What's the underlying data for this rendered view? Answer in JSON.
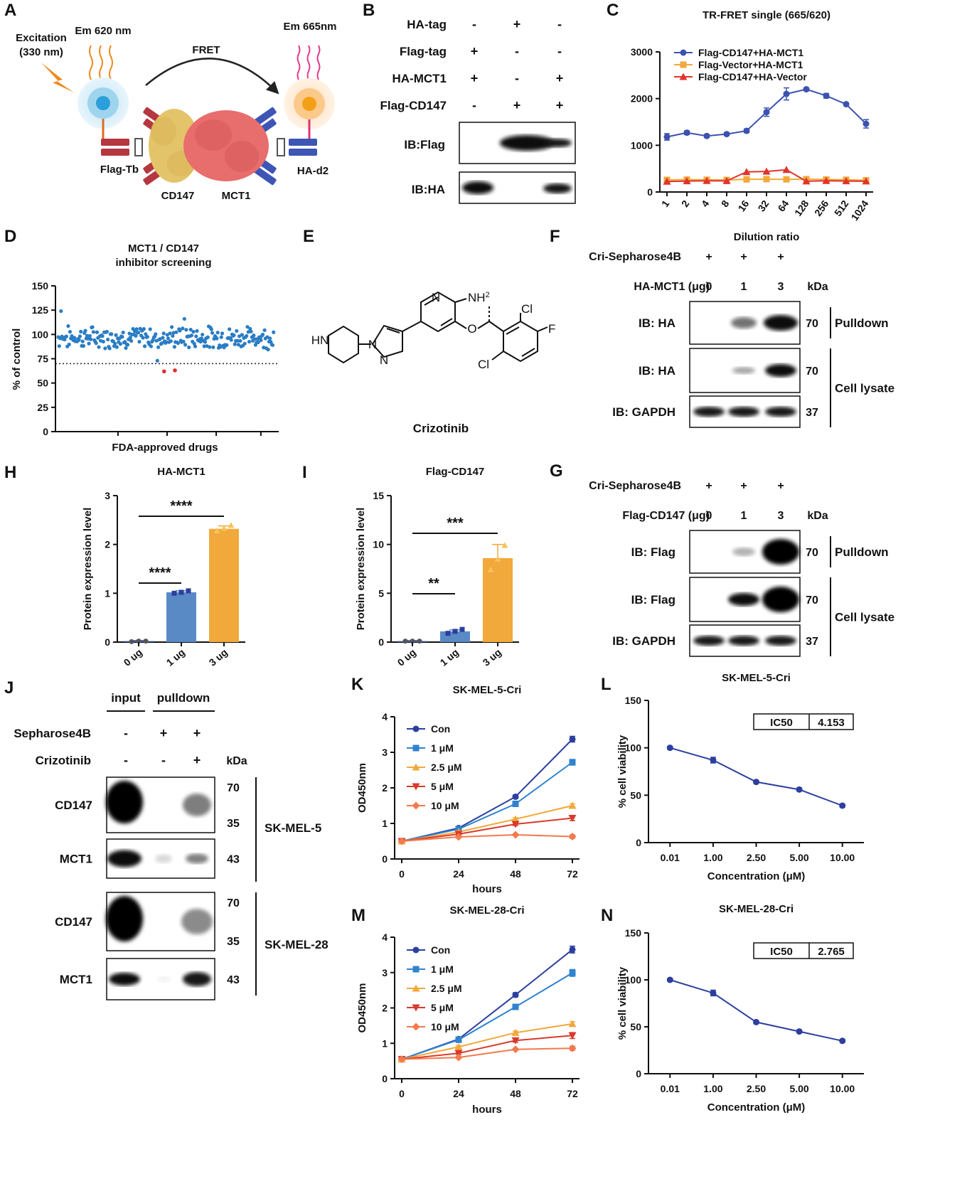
{
  "panels": {
    "A": {
      "letter": "A",
      "excitation": [
        "Excitation",
        "(330 nm)"
      ],
      "em620": "Em 620 nm",
      "em665": "Em 665nm",
      "fret": "FRET",
      "flag_tb": "Flag-Tb",
      "ha_d2": "HA-d2",
      "cd147": "CD147",
      "mct1": "MCT1",
      "colors": {
        "cd147": "#e3c46a",
        "mct1": "#e86d6d",
        "flag_ab": "#b5373f",
        "ha_ab": "#3d55b4",
        "donor": "#3aa6d9",
        "acceptor": "#f0a020"
      }
    },
    "B": {
      "letter": "B",
      "rows": [
        {
          "label": "HA-tag",
          "marks": [
            "-",
            "+",
            "-"
          ]
        },
        {
          "label": "Flag-tag",
          "marks": [
            "+",
            "-",
            "-"
          ]
        },
        {
          "label": "HA-MCT1",
          "marks": [
            "+",
            "-",
            "+"
          ]
        },
        {
          "label": "Flag-CD147",
          "marks": [
            "-",
            "+",
            "+"
          ]
        }
      ],
      "blots": [
        "IB:Flag",
        "IB:HA"
      ]
    },
    "C": {
      "letter": "C"
    },
    "D": {
      "letter": "D"
    },
    "E": {
      "letter": "E",
      "caption": "Crizotinib",
      "atoms": {
        "n1": "N",
        "nh2": "NH",
        "nh2_sub": "2",
        "cl1": "Cl",
        "f": "F",
        "o": "O",
        "cl2": "Cl",
        "hn": "HN",
        "n2": "N",
        "n3": "N"
      }
    },
    "F": {
      "letter": "F",
      "header": "Cri-Sepharose4B",
      "header_marks": [
        "+",
        "+",
        "+"
      ],
      "row_label": "HA-MCT1 (μg)",
      "doses": [
        "0",
        "1",
        "3"
      ],
      "kda": "kDa",
      "blots": [
        {
          "label": "IB: HA",
          "kda": "70"
        },
        {
          "label": "IB: HA",
          "kda": "70"
        },
        {
          "label": "IB: GAPDH",
          "kda": "37"
        }
      ],
      "groups": [
        "Pulldown",
        "Cell lysate"
      ]
    },
    "G": {
      "letter": "G",
      "header": "Cri-Sepharose4B",
      "header_marks": [
        "+",
        "+",
        "+"
      ],
      "row_label": "Flag-CD147 (μg)",
      "doses": [
        "0",
        "1",
        "3"
      ],
      "kda": "kDa",
      "blots": [
        {
          "label": "IB: Flag",
          "kda": "70"
        },
        {
          "label": "IB: Flag",
          "kda": "70"
        },
        {
          "label": "IB: GAPDH",
          "kda": "37"
        }
      ],
      "groups": [
        "Pulldown",
        "Cell lysate"
      ]
    },
    "H": {
      "letter": "H",
      "sig": [
        "****",
        "****"
      ]
    },
    "I": {
      "letter": "I",
      "sig": [
        "**",
        "***"
      ]
    },
    "J": {
      "letter": "J",
      "col_headers": [
        "input",
        "pulldown"
      ],
      "rows": [
        {
          "label": "Sepharose4B",
          "marks": [
            "-",
            "+",
            "+"
          ]
        },
        {
          "label": "Crizotinib",
          "marks": [
            "-",
            "-",
            "+"
          ]
        }
      ],
      "kda": "kDa",
      "blots": [
        {
          "label": "CD147",
          "kda": [
            "70",
            "35"
          ]
        },
        {
          "label": "MCT1",
          "kda": [
            "43"
          ]
        },
        {
          "label": "CD147",
          "kda": [
            "70",
            "35"
          ]
        },
        {
          "label": "MCT1",
          "kda": [
            "43"
          ]
        }
      ],
      "cell_lines": [
        "SK-MEL-5",
        "SK-MEL-28"
      ]
    },
    "K": {
      "letter": "K"
    },
    "L": {
      "letter": "L",
      "ic50_label": "IC50",
      "ic50_value": "4.153"
    },
    "M": {
      "letter": "M"
    },
    "N": {
      "letter": "N",
      "ic50_label": "IC50",
      "ic50_value": "2.765"
    }
  },
  "chart_data": [
    {
      "id": "C",
      "type": "line",
      "title": "TR-FRET single (665/620)",
      "xlabel": "Dilution ratio",
      "ylabel": "",
      "categories": [
        "1",
        "2",
        "4",
        "8",
        "16",
        "32",
        "64",
        "128",
        "256",
        "512",
        "1024"
      ],
      "ylim": [
        0,
        3000
      ],
      "yticks": [
        "0",
        "1000",
        "2000",
        "3000"
      ],
      "legend": "top-left",
      "series": [
        {
          "name": "Flag-CD147+HA-MCT1",
          "color": "#3c52b0",
          "marker": "circle",
          "values": [
            1180,
            1270,
            1200,
            1240,
            1310,
            1710,
            2100,
            2200,
            2060,
            1880,
            1460
          ]
        },
        {
          "name": "Flag-Vector+HA-MCT1",
          "color": "#f2a93b",
          "marker": "square",
          "values": [
            260,
            265,
            262,
            258,
            270,
            275,
            270,
            275,
            268,
            262,
            252
          ]
        },
        {
          "name": "Flag-CD147+HA-Vector",
          "color": "#e0342b",
          "marker": "triangle",
          "values": [
            225,
            235,
            240,
            238,
            430,
            440,
            475,
            230,
            240,
            235,
            230
          ]
        }
      ]
    },
    {
      "id": "D",
      "type": "scatter",
      "title": "MCT1 / CD147\ninhibitor screening",
      "xlabel": "FDA-approved drugs",
      "ylabel": "% of control",
      "ylim": [
        0,
        150
      ],
      "yticks": [
        "0",
        "25",
        "50",
        "75",
        "100",
        "125",
        "150"
      ],
      "threshold": 70,
      "n_points": 240,
      "hits": [
        {
          "index": 78,
          "value": 62
        },
        {
          "index": 90,
          "value": 63
        }
      ],
      "color": "#2a7dc4",
      "hit_color": "#e0302a"
    },
    {
      "id": "H",
      "type": "bar",
      "title": "HA-MCT1",
      "xlabel": "",
      "ylabel": "Protein  expression level",
      "categories": [
        "0 ug",
        "1 ug",
        "3 ug"
      ],
      "values": [
        0.02,
        1.02,
        2.32
      ],
      "errors": [
        0.01,
        0.03,
        0.06
      ],
      "points": [
        [
          0.01,
          0.02,
          0.02
        ],
        [
          1.0,
          1.02,
          1.05
        ],
        [
          2.28,
          2.33,
          2.39
        ]
      ],
      "colors": [
        "#3c52b0",
        "#5a8ac6",
        "#f2a93b"
      ],
      "ylim": [
        0,
        3
      ],
      "yticks": [
        "0",
        "1",
        "2",
        "3"
      ]
    },
    {
      "id": "I",
      "type": "bar",
      "title": "Flag-CD147",
      "xlabel": "",
      "ylabel": "Protein  expression level",
      "categories": [
        "0 ug",
        "1 ug",
        "3 ug"
      ],
      "values": [
        0.1,
        1.1,
        8.6
      ],
      "errors": [
        0.05,
        0.15,
        1.4
      ],
      "points": [
        [
          0.1,
          0.1,
          0.1
        ],
        [
          0.9,
          1.1,
          1.3
        ],
        [
          7.4,
          8.5,
          9.9
        ]
      ],
      "colors": [
        "#3c52b0",
        "#5a8ac6",
        "#f2a93b"
      ],
      "ylim": [
        0,
        15
      ],
      "yticks": [
        "0",
        "5",
        "10",
        "15"
      ]
    },
    {
      "id": "K",
      "type": "line",
      "title": "SK-MEL-5-Cri",
      "xlabel": "hours",
      "ylabel": "OD450nm",
      "categories": [
        "0",
        "24",
        "48",
        "72"
      ],
      "ylim": [
        0,
        4
      ],
      "yticks": [
        "0",
        "1",
        "2",
        "3",
        "4"
      ],
      "legend": "top-left",
      "series": [
        {
          "name": "Con",
          "color": "#2c3f9e",
          "marker": "circle",
          "values": [
            0.5,
            0.87,
            1.75,
            3.37
          ]
        },
        {
          "name": "1 μM",
          "color": "#2f83cf",
          "marker": "square",
          "values": [
            0.5,
            0.84,
            1.55,
            2.72
          ]
        },
        {
          "name": "2.5 μM",
          "color": "#f2a93b",
          "marker": "triangle",
          "values": [
            0.5,
            0.76,
            1.12,
            1.5
          ]
        },
        {
          "name": "5 μM",
          "color": "#d93a2b",
          "marker": "triangle-down",
          "values": [
            0.5,
            0.7,
            0.98,
            1.15
          ]
        },
        {
          "name": "10 μM",
          "color": "#f27a4d",
          "marker": "diamond",
          "values": [
            0.5,
            0.62,
            0.68,
            0.63
          ]
        }
      ]
    },
    {
      "id": "L",
      "type": "line",
      "title": "SK-MEL-5-Cri",
      "xlabel": "Concentration (μM)",
      "ylabel": "% cell viability",
      "categories": [
        "0.01",
        "1.00",
        "2.50",
        "5.00",
        "10.00"
      ],
      "ylim": [
        0,
        150
      ],
      "yticks": [
        "0",
        "50",
        "100",
        "150"
      ],
      "series": [
        {
          "name": "",
          "color": "#2c3f9e",
          "marker": "circle",
          "values": [
            100,
            87,
            64,
            56,
            39
          ]
        }
      ]
    },
    {
      "id": "M",
      "type": "line",
      "title": "SK-MEL-28-Cri",
      "xlabel": "hours",
      "ylabel": "OD450nm",
      "categories": [
        "0",
        "24",
        "48",
        "72"
      ],
      "ylim": [
        0,
        4
      ],
      "yticks": [
        "0",
        "1",
        "2",
        "3",
        "4"
      ],
      "legend": "top-left",
      "series": [
        {
          "name": "Con",
          "color": "#2c3f9e",
          "marker": "circle",
          "values": [
            0.55,
            1.12,
            2.37,
            3.65
          ]
        },
        {
          "name": "1 μM",
          "color": "#2f83cf",
          "marker": "square",
          "values": [
            0.55,
            1.1,
            2.03,
            2.99
          ]
        },
        {
          "name": "2.5 μM",
          "color": "#f2a93b",
          "marker": "triangle",
          "values": [
            0.55,
            0.9,
            1.3,
            1.55
          ]
        },
        {
          "name": "5 μM",
          "color": "#d93a2b",
          "marker": "triangle-down",
          "values": [
            0.55,
            0.72,
            1.08,
            1.22
          ]
        },
        {
          "name": "10 μM",
          "color": "#f27a4d",
          "marker": "diamond",
          "values": [
            0.55,
            0.6,
            0.83,
            0.86
          ]
        }
      ]
    },
    {
      "id": "N",
      "type": "line",
      "title": "SK-MEL-28-Cri",
      "xlabel": "Concentration (μM)",
      "ylabel": "% cell viability",
      "categories": [
        "0.01",
        "1.00",
        "2.50",
        "5.00",
        "10.00"
      ],
      "ylim": [
        0,
        150
      ],
      "yticks": [
        "0",
        "50",
        "100",
        "150"
      ],
      "series": [
        {
          "name": "",
          "color": "#2c3f9e",
          "marker": "circle",
          "values": [
            100,
            86,
            55,
            45,
            35
          ]
        }
      ]
    }
  ]
}
